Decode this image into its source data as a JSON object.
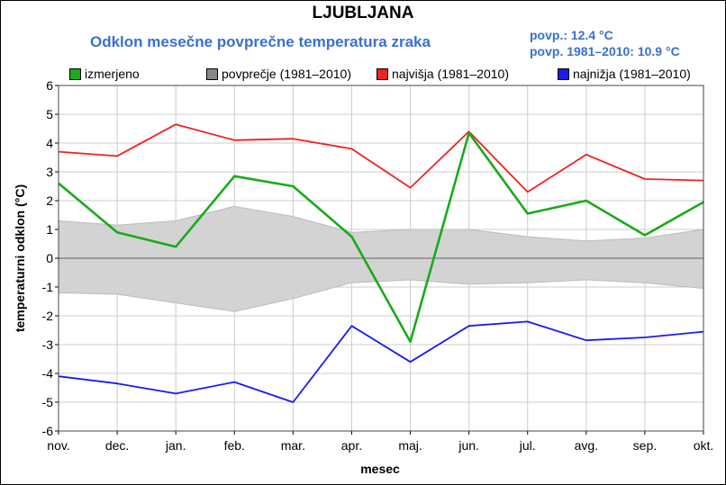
{
  "header": {
    "title": "LJUBLJANA",
    "subtitle": "Odklon mesečne povprečne temperatura zraka",
    "avg_current": "povp.: 12.4 °C",
    "avg_normal": "povp. 1981–2010: 10.9 °C"
  },
  "colors": {
    "measured": "#1aaa1a",
    "band": "#d3d3d3",
    "band_edge": "#bbbbbb",
    "max": "#ee2222",
    "min": "#1a1aee",
    "grid": "#cccccc",
    "zero": "#888888",
    "accent": "#3a6fd0"
  },
  "chart_data": {
    "type": "line",
    "title": "Odklon mesečne povprečne temperatura zraka",
    "xlabel": "mesec",
    "ylabel": "temperaturni odklon (°C)",
    "ylim": [
      -6,
      6
    ],
    "yticks": [
      6,
      5,
      4,
      3,
      2,
      1,
      0,
      -1,
      -2,
      -3,
      -4,
      -5,
      -6
    ],
    "grid": true,
    "legend_position": "top",
    "categories": [
      "nov.",
      "dec.",
      "jan.",
      "feb.",
      "mar.",
      "apr.",
      "maj.",
      "jun.",
      "jul.",
      "avg.",
      "sep.",
      "okt."
    ],
    "legend": [
      {
        "key": "measured",
        "label": "izmerjeno"
      },
      {
        "key": "band",
        "label": "povprečje (1981–2010)"
      },
      {
        "key": "max",
        "label": "najvišja (1981–2010)"
      },
      {
        "key": "min",
        "label": "najnižja (1981–2010)"
      }
    ],
    "series": [
      {
        "name": "izmerjeno",
        "key": "measured",
        "values": [
          2.6,
          0.9,
          0.4,
          2.85,
          2.5,
          0.75,
          -2.9,
          4.35,
          1.55,
          2.0,
          0.8,
          1.95
        ]
      },
      {
        "name": "najvišja (1981–2010)",
        "key": "max",
        "values": [
          3.7,
          3.55,
          4.65,
          4.1,
          4.15,
          3.8,
          2.45,
          4.4,
          2.3,
          3.6,
          2.75,
          2.7
        ]
      },
      {
        "name": "najnižja (1981–2010)",
        "key": "min",
        "values": [
          -4.1,
          -4.35,
          -4.7,
          -4.3,
          -5.0,
          -2.35,
          -3.6,
          -2.35,
          -2.2,
          -2.85,
          -2.75,
          -2.55
        ]
      }
    ],
    "band": {
      "name": "povprečje (1981–2010)",
      "upper": [
        1.3,
        1.15,
        1.3,
        1.8,
        1.45,
        0.9,
        1.0,
        1.0,
        0.75,
        0.6,
        0.7,
        1.0
      ],
      "lower": [
        -1.2,
        -1.25,
        -1.55,
        -1.85,
        -1.4,
        -0.85,
        -0.75,
        -0.9,
        -0.85,
        -0.75,
        -0.85,
        -1.05
      ]
    }
  }
}
